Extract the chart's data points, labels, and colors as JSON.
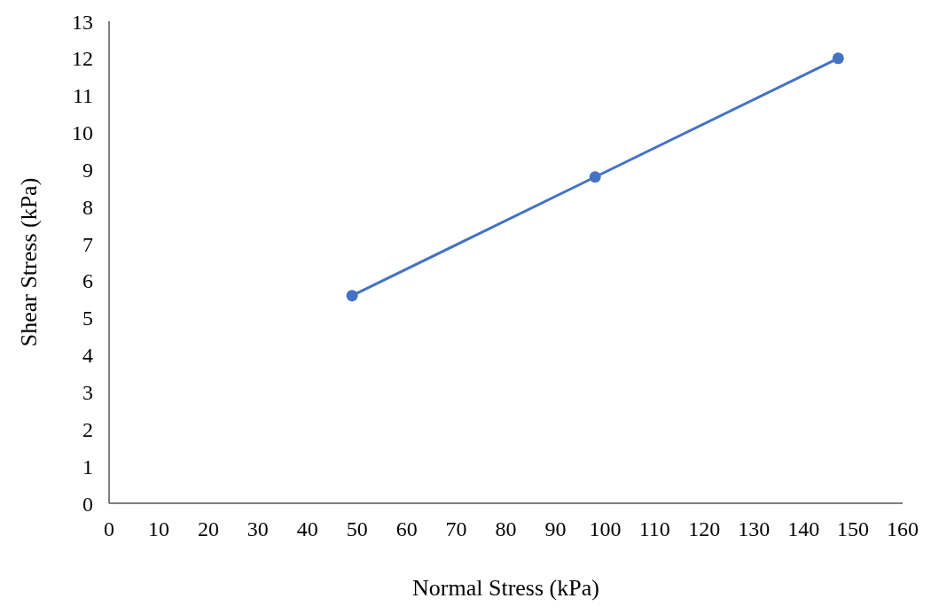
{
  "chart_data": {
    "type": "line",
    "xlabel": "Normal Stress (kPa)",
    "ylabel": "Shear Stress (kPa)",
    "x": [
      49,
      98,
      147
    ],
    "series": [
      {
        "color": "#4472c4",
        "values": [
          5.6,
          8.8,
          12.0
        ]
      }
    ],
    "xlim": [
      0,
      160
    ],
    "xticks": [
      0,
      10,
      20,
      30,
      40,
      50,
      60,
      70,
      80,
      90,
      100,
      110,
      120,
      130,
      140,
      150,
      160
    ],
    "ylim": [
      0,
      13
    ],
    "yticks": [
      0,
      1,
      2,
      3,
      4,
      5,
      6,
      7,
      8,
      9,
      10,
      11,
      12,
      13
    ],
    "marker": "circle",
    "line_style": "solid"
  }
}
